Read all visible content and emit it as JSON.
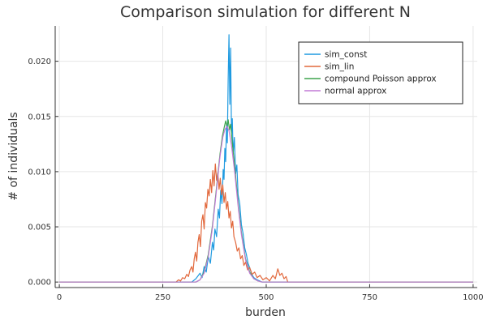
{
  "chart_data": {
    "type": "line",
    "title": "Comparison simulation for different N",
    "xlabel": "burden",
    "ylabel": "# of individuals",
    "xlim": [
      -10,
      1010
    ],
    "ylim": [
      -0.0005,
      0.0232
    ],
    "xticks": [
      0,
      250,
      500,
      750,
      1000
    ],
    "xtick_labels": [
      "0",
      "250",
      "500",
      "750",
      "1000"
    ],
    "yticks": [
      0.0,
      0.005,
      0.01,
      0.015,
      0.02
    ],
    "ytick_labels": [
      "0.000",
      "0.005",
      "0.010",
      "0.015",
      "0.020"
    ],
    "grid": true,
    "legend_position": "top-right",
    "series": [
      {
        "name": "sim_const",
        "color": "#1f9ae0",
        "points": [
          [
            0,
            0
          ],
          [
            320,
            0
          ],
          [
            330,
            0.0003
          ],
          [
            340,
            0.0008
          ],
          [
            345,
            0.0004
          ],
          [
            350,
            0.0014
          ],
          [
            355,
            0.0009
          ],
          [
            360,
            0.0023
          ],
          [
            365,
            0.0017
          ],
          [
            370,
            0.0036
          ],
          [
            373,
            0.0029
          ],
          [
            376,
            0.0048
          ],
          [
            380,
            0.0041
          ],
          [
            384,
            0.0066
          ],
          [
            387,
            0.0058
          ],
          [
            390,
            0.0083
          ],
          [
            393,
            0.0071
          ],
          [
            396,
            0.0102
          ],
          [
            398,
            0.0093
          ],
          [
            400,
            0.0121
          ],
          [
            402,
            0.0109
          ],
          [
            404,
            0.0142
          ],
          [
            406,
            0.0126
          ],
          [
            408,
            0.0183
          ],
          [
            410,
            0.0224
          ],
          [
            412,
            0.0161
          ],
          [
            414,
            0.0212
          ],
          [
            416,
            0.0135
          ],
          [
            418,
            0.0148
          ],
          [
            420,
            0.0116
          ],
          [
            423,
            0.0131
          ],
          [
            426,
            0.0098
          ],
          [
            429,
            0.0106
          ],
          [
            432,
            0.0079
          ],
          [
            436,
            0.0071
          ],
          [
            440,
            0.0052
          ],
          [
            444,
            0.0044
          ],
          [
            448,
            0.0031
          ],
          [
            452,
            0.0025
          ],
          [
            456,
            0.0017
          ],
          [
            460,
            0.0013
          ],
          [
            465,
            0.0007
          ],
          [
            470,
            0.0004
          ],
          [
            478,
            0.0002
          ],
          [
            490,
            0
          ],
          [
            1000,
            0
          ]
        ]
      },
      {
        "name": "sim_lin",
        "color": "#e2683c",
        "points": [
          [
            0,
            0
          ],
          [
            282,
            0
          ],
          [
            288,
            0.0002
          ],
          [
            293,
            0.0001
          ],
          [
            298,
            0.0004
          ],
          [
            303,
            0.0003
          ],
          [
            308,
            0.0007
          ],
          [
            312,
            0.0005
          ],
          [
            316,
            0.0011
          ],
          [
            320,
            0.0014
          ],
          [
            323,
            0.0009
          ],
          [
            326,
            0.0021
          ],
          [
            329,
            0.0027
          ],
          [
            332,
            0.0019
          ],
          [
            335,
            0.0036
          ],
          [
            338,
            0.0043
          ],
          [
            341,
            0.0032
          ],
          [
            344,
            0.0055
          ],
          [
            347,
            0.0061
          ],
          [
            350,
            0.0048
          ],
          [
            353,
            0.0072
          ],
          [
            356,
            0.0067
          ],
          [
            359,
            0.0084
          ],
          [
            362,
            0.0078
          ],
          [
            365,
            0.0093
          ],
          [
            368,
            0.0081
          ],
          [
            371,
            0.0101
          ],
          [
            374,
            0.0087
          ],
          [
            377,
            0.0107
          ],
          [
            380,
            0.0092
          ],
          [
            383,
            0.0099
          ],
          [
            386,
            0.0084
          ],
          [
            389,
            0.0094
          ],
          [
            392,
            0.0079
          ],
          [
            395,
            0.0088
          ],
          [
            398,
            0.0072
          ],
          [
            401,
            0.0081
          ],
          [
            404,
            0.0066
          ],
          [
            407,
            0.0073
          ],
          [
            410,
            0.0058
          ],
          [
            413,
            0.0064
          ],
          [
            416,
            0.0049
          ],
          [
            419,
            0.0055
          ],
          [
            422,
            0.0041
          ],
          [
            426,
            0.0036
          ],
          [
            430,
            0.0028
          ],
          [
            434,
            0.0031
          ],
          [
            438,
            0.0021
          ],
          [
            442,
            0.0024
          ],
          [
            446,
            0.0015
          ],
          [
            450,
            0.0018
          ],
          [
            455,
            0.0011
          ],
          [
            460,
            0.0013
          ],
          [
            466,
            0.0007
          ],
          [
            472,
            0.0009
          ],
          [
            478,
            0.0004
          ],
          [
            485,
            0.0006
          ],
          [
            492,
            0.0002
          ],
          [
            500,
            0.0004
          ],
          [
            508,
            0.0001
          ],
          [
            516,
            0.0006
          ],
          [
            522,
            0.0003
          ],
          [
            528,
            0.0012
          ],
          [
            533,
            0.0006
          ],
          [
            538,
            0.0008
          ],
          [
            543,
            0.0003
          ],
          [
            548,
            0.0005
          ],
          [
            552,
            0
          ],
          [
            1000,
            0
          ]
        ]
      },
      {
        "name": "compound Poisson approx",
        "color": "#3da44d",
        "points": [
          [
            0,
            0
          ],
          [
            330,
            0
          ],
          [
            340,
            0.0002
          ],
          [
            350,
            0.0009
          ],
          [
            360,
            0.0025
          ],
          [
            370,
            0.0051
          ],
          [
            380,
            0.0086
          ],
          [
            388,
            0.0115
          ],
          [
            394,
            0.0132
          ],
          [
            399,
            0.0141
          ],
          [
            402,
            0.0146
          ],
          [
            405,
            0.0141
          ],
          [
            408,
            0.0147
          ],
          [
            411,
            0.0138
          ],
          [
            414,
            0.0143
          ],
          [
            418,
            0.0126
          ],
          [
            424,
            0.0104
          ],
          [
            432,
            0.0072
          ],
          [
            440,
            0.0045
          ],
          [
            450,
            0.0021
          ],
          [
            460,
            0.0009
          ],
          [
            470,
            0.0003
          ],
          [
            480,
            0.0001
          ],
          [
            490,
            0
          ],
          [
            1000,
            0
          ]
        ]
      },
      {
        "name": "normal approx",
        "color": "#c27ad6",
        "points": [
          [
            0,
            0
          ],
          [
            330,
            0
          ],
          [
            340,
            0.0002
          ],
          [
            350,
            0.0008
          ],
          [
            360,
            0.0023
          ],
          [
            370,
            0.0049
          ],
          [
            380,
            0.0084
          ],
          [
            388,
            0.0113
          ],
          [
            395,
            0.0131
          ],
          [
            400,
            0.0138
          ],
          [
            405,
            0.0141
          ],
          [
            410,
            0.0137
          ],
          [
            416,
            0.0124
          ],
          [
            424,
            0.0099
          ],
          [
            432,
            0.0069
          ],
          [
            440,
            0.0043
          ],
          [
            450,
            0.002
          ],
          [
            460,
            0.0008
          ],
          [
            470,
            0.0003
          ],
          [
            480,
            0.0001
          ],
          [
            490,
            0
          ],
          [
            1000,
            0
          ]
        ]
      }
    ]
  }
}
